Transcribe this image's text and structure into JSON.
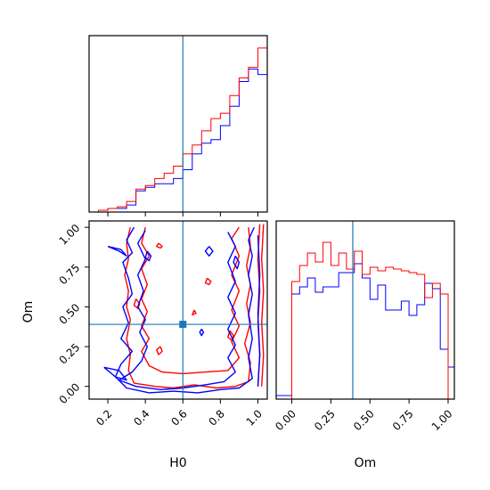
{
  "colors": {
    "red_series": "#ff0000",
    "blue_series": "#0000ff",
    "truth_line": "#1f77b4",
    "axes": "#000000"
  },
  "axis_labels": {
    "h0": "H0",
    "om": "Om"
  },
  "chart_data": [
    {
      "type": "histogram",
      "panel": "H0 marginal (top-left)",
      "xlim": [
        0.1,
        1.05
      ],
      "ylim": [
        0,
        1.0
      ],
      "x_ticks_shown": false,
      "y_ticks_shown": false,
      "bin_edges": [
        0.1,
        0.15,
        0.2,
        0.25,
        0.3,
        0.35,
        0.4,
        0.45,
        0.5,
        0.55,
        0.6,
        0.65,
        0.7,
        0.75,
        0.8,
        0.85,
        0.9,
        0.95,
        1.0,
        1.05
      ],
      "truth": 0.6,
      "series": [
        {
          "color": "red",
          "values": [
            0,
            0.01,
            0.02,
            0.03,
            0.06,
            0.13,
            0.15,
            0.19,
            0.22,
            0.26,
            0.33,
            0.38,
            0.46,
            0.53,
            0.56,
            0.66,
            0.76,
            0.82,
            0.93,
            0
          ]
        },
        {
          "color": "blue",
          "values": [
            0,
            0.01,
            0.02,
            0.02,
            0.04,
            0.12,
            0.14,
            0.16,
            0.16,
            0.19,
            0.24,
            0.33,
            0.39,
            0.41,
            0.49,
            0.6,
            0.74,
            0.81,
            0.78,
            0.12
          ]
        }
      ]
    },
    {
      "type": "contour",
      "panel": "H0 vs Om (bottom-left)",
      "xlabel": "H0",
      "ylabel": "Om",
      "xlim": [
        0.1,
        1.05
      ],
      "ylim": [
        -0.08,
        1.04
      ],
      "x_ticks": [
        0.2,
        0.4,
        0.6,
        0.8,
        1.0
      ],
      "x_tick_labels": [
        "0.2",
        "0.4",
        "0.6",
        "0.8",
        "1.0"
      ],
      "y_ticks": [
        0.0,
        0.25,
        0.5,
        0.75,
        1.0
      ],
      "y_tick_labels": [
        "0.00",
        "0.25",
        "0.50",
        "0.75",
        "1.00"
      ],
      "truth": {
        "x": 0.6,
        "y": 0.39
      },
      "series": [
        {
          "color": "red",
          "contours": [
            [
              [
                0.32,
                1.0
              ],
              [
                0.3,
                0.9
              ],
              [
                0.31,
                0.8
              ],
              [
                0.29,
                0.7
              ],
              [
                0.31,
                0.6
              ],
              [
                0.3,
                0.5
              ],
              [
                0.32,
                0.42
              ],
              [
                0.3,
                0.3
              ],
              [
                0.32,
                0.2
              ],
              [
                0.31,
                0.1
              ],
              [
                0.34,
                0.02
              ],
              [
                0.45,
                0.0
              ],
              [
                0.55,
                -0.01
              ],
              [
                0.66,
                0.01
              ],
              [
                0.78,
                -0.01
              ],
              [
                0.88,
                0.0
              ],
              [
                0.95,
                0.03
              ],
              [
                0.96,
                0.15
              ],
              [
                0.93,
                0.27
              ],
              [
                0.96,
                0.4
              ],
              [
                0.94,
                0.52
              ],
              [
                0.96,
                0.64
              ],
              [
                0.94,
                0.76
              ],
              [
                0.96,
                0.88
              ],
              [
                0.95,
                1.0
              ]
            ],
            [
              [
                0.4,
                1.0
              ],
              [
                0.38,
                0.9
              ],
              [
                0.42,
                0.82
              ],
              [
                0.38,
                0.74
              ],
              [
                0.41,
                0.64
              ],
              [
                0.38,
                0.55
              ],
              [
                0.41,
                0.47
              ],
              [
                0.38,
                0.38
              ],
              [
                0.42,
                0.3
              ],
              [
                0.38,
                0.22
              ],
              [
                0.42,
                0.13
              ],
              [
                0.49,
                0.09
              ],
              [
                0.6,
                0.08
              ],
              [
                0.72,
                0.09
              ],
              [
                0.84,
                0.1
              ],
              [
                0.9,
                0.18
              ],
              [
                0.86,
                0.28
              ],
              [
                0.9,
                0.38
              ],
              [
                0.86,
                0.48
              ],
              [
                0.9,
                0.6
              ],
              [
                0.86,
                0.7
              ],
              [
                0.9,
                0.82
              ],
              [
                0.86,
                0.93
              ],
              [
                0.9,
                1.0
              ]
            ],
            [
              [
                1.01,
                1.02
              ],
              [
                1.0,
                0.8
              ],
              [
                1.01,
                0.6
              ],
              [
                1.0,
                0.4
              ],
              [
                1.01,
                0.2
              ],
              [
                1.0,
                0.0
              ]
            ],
            [
              [
                1.03,
                1.02
              ],
              [
                1.02,
                0.8
              ],
              [
                1.03,
                0.6
              ],
              [
                1.02,
                0.4
              ],
              [
                1.03,
                0.2
              ],
              [
                1.02,
                0.0
              ]
            ],
            [
              [
                0.73,
                0.68
              ],
              [
                0.75,
                0.66
              ],
              [
                0.74,
                0.64
              ],
              [
                0.72,
                0.65
              ],
              [
                0.73,
                0.68
              ]
            ],
            [
              [
                0.47,
                0.9
              ],
              [
                0.49,
                0.88
              ],
              [
                0.48,
                0.87
              ],
              [
                0.46,
                0.88
              ],
              [
                0.47,
                0.9
              ]
            ],
            [
              [
                0.35,
                0.55
              ],
              [
                0.37,
                0.52
              ],
              [
                0.36,
                0.49
              ],
              [
                0.34,
                0.51
              ],
              [
                0.35,
                0.55
              ]
            ],
            [
              [
                0.48,
                0.25
              ],
              [
                0.49,
                0.22
              ],
              [
                0.47,
                0.2
              ],
              [
                0.46,
                0.23
              ],
              [
                0.48,
                0.25
              ]
            ],
            [
              [
                0.66,
                0.48
              ],
              [
                0.67,
                0.46
              ],
              [
                0.65,
                0.45
              ],
              [
                0.66,
                0.48
              ]
            ],
            [
              [
                0.85,
                0.35
              ],
              [
                0.87,
                0.32
              ],
              [
                0.86,
                0.29
              ],
              [
                0.84,
                0.31
              ],
              [
                0.85,
                0.35
              ]
            ]
          ]
        },
        {
          "color": "blue",
          "contours": [
            [
              [
                0.34,
                1.0
              ],
              [
                0.3,
                0.92
              ],
              [
                0.33,
                0.84
              ],
              [
                0.28,
                0.78
              ],
              [
                0.31,
                0.68
              ],
              [
                0.33,
                0.58
              ],
              [
                0.28,
                0.5
              ],
              [
                0.31,
                0.4
              ],
              [
                0.27,
                0.3
              ],
              [
                0.33,
                0.22
              ],
              [
                0.27,
                0.14
              ],
              [
                0.24,
                0.06
              ],
              [
                0.3,
                -0.01
              ],
              [
                0.42,
                -0.04
              ],
              [
                0.55,
                -0.03
              ],
              [
                0.68,
                -0.04
              ],
              [
                0.8,
                -0.02
              ],
              [
                0.9,
                -0.01
              ],
              [
                0.97,
                0.05
              ],
              [
                0.95,
                0.18
              ],
              [
                0.97,
                0.3
              ],
              [
                0.95,
                0.45
              ],
              [
                0.97,
                0.58
              ],
              [
                0.95,
                0.7
              ],
              [
                0.97,
                0.82
              ],
              [
                0.95,
                0.92
              ],
              [
                0.98,
                1.0
              ]
            ],
            [
              [
                0.4,
                0.98
              ],
              [
                0.36,
                0.9
              ],
              [
                0.4,
                0.8
              ],
              [
                0.36,
                0.7
              ],
              [
                0.39,
                0.6
              ],
              [
                0.36,
                0.5
              ],
              [
                0.4,
                0.42
              ],
              [
                0.37,
                0.34
              ],
              [
                0.41,
                0.25
              ],
              [
                0.38,
                0.16
              ],
              [
                0.33,
                0.09
              ],
              [
                0.26,
                0.04
              ],
              [
                0.35,
                0.0
              ],
              [
                0.48,
                -0.02
              ],
              [
                0.6,
                -0.01
              ],
              [
                0.72,
                0.01
              ],
              [
                0.82,
                0.03
              ],
              [
                0.88,
                0.09
              ],
              [
                0.84,
                0.18
              ],
              [
                0.88,
                0.26
              ],
              [
                0.84,
                0.36
              ],
              [
                0.88,
                0.46
              ],
              [
                0.84,
                0.56
              ],
              [
                0.88,
                0.66
              ],
              [
                0.84,
                0.78
              ],
              [
                0.88,
                0.88
              ],
              [
                0.84,
                0.97
              ]
            ],
            [
              [
                0.2,
                0.88
              ],
              [
                0.26,
                0.85
              ],
              [
                0.3,
                0.82
              ],
              [
                0.27,
                0.86
              ],
              [
                0.2,
                0.88
              ]
            ],
            [
              [
                0.18,
                0.12
              ],
              [
                0.24,
                0.06
              ],
              [
                0.3,
                0.04
              ],
              [
                0.26,
                0.1
              ],
              [
                0.18,
                0.12
              ]
            ],
            [
              [
                1.0,
                0.95
              ],
              [
                1.01,
                0.7
              ],
              [
                1.0,
                0.45
              ],
              [
                1.01,
                0.2
              ],
              [
                1.0,
                0.0
              ]
            ],
            [
              [
                0.74,
                0.88
              ],
              [
                0.76,
                0.85
              ],
              [
                0.74,
                0.82
              ],
              [
                0.72,
                0.85
              ],
              [
                0.74,
                0.88
              ]
            ],
            [
              [
                0.41,
                0.85
              ],
              [
                0.43,
                0.82
              ],
              [
                0.42,
                0.79
              ],
              [
                0.4,
                0.81
              ],
              [
                0.41,
                0.85
              ]
            ],
            [
              [
                0.7,
                0.36
              ],
              [
                0.71,
                0.34
              ],
              [
                0.7,
                0.32
              ],
              [
                0.69,
                0.34
              ],
              [
                0.7,
                0.36
              ]
            ],
            [
              [
                0.88,
                0.82
              ],
              [
                0.9,
                0.78
              ],
              [
                0.89,
                0.74
              ],
              [
                0.87,
                0.78
              ],
              [
                0.88,
                0.82
              ]
            ]
          ]
        }
      ]
    },
    {
      "type": "histogram",
      "panel": "Om marginal (bottom-right)",
      "xlabel": "Om",
      "xlim": [
        -0.1,
        1.04
      ],
      "ylim": [
        0,
        1.0
      ],
      "x_ticks": [
        0.0,
        0.25,
        0.5,
        0.75,
        1.0
      ],
      "x_tick_labels": [
        "0.00",
        "0.25",
        "0.50",
        "0.75",
        "1.00"
      ],
      "y_ticks_shown": false,
      "bin_edges": [
        -0.1,
        -0.05,
        0.0,
        0.05,
        0.1,
        0.15,
        0.2,
        0.25,
        0.3,
        0.35,
        0.4,
        0.45,
        0.5,
        0.55,
        0.6,
        0.65,
        0.7,
        0.75,
        0.8,
        0.85,
        0.9,
        0.95,
        1.0,
        1.04
      ],
      "truth": 0.39,
      "series": [
        {
          "color": "red",
          "values": [
            0,
            0,
            0.66,
            0.75,
            0.82,
            0.77,
            0.88,
            0.75,
            0.82,
            0.73,
            0.83,
            0.7,
            0.74,
            0.72,
            0.74,
            0.73,
            0.72,
            0.71,
            0.7,
            0.57,
            0.65,
            0.59,
            0
          ]
        },
        {
          "color": "blue",
          "values": [
            0.02,
            0.02,
            0.59,
            0.63,
            0.68,
            0.6,
            0.63,
            0.63,
            0.71,
            0.71,
            0.76,
            0.68,
            0.56,
            0.64,
            0.5,
            0.5,
            0.55,
            0.47,
            0.53,
            0.65,
            0.62,
            0.28,
            0.18
          ]
        }
      ]
    }
  ]
}
